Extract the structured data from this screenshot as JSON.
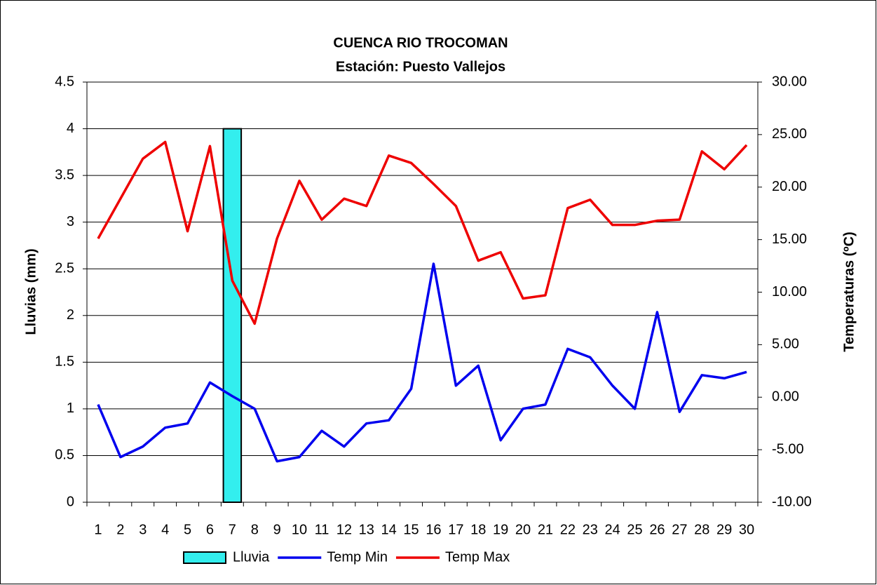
{
  "chart_data": {
    "type": "bar",
    "title": "CUENCA RIO TROCOMAN",
    "subtitle": "Estación: Puesto Vallejos",
    "y_label": "Lluvias (mm)",
    "y2_label": "Temperaturas (ºC)",
    "categories": [
      "1",
      "2",
      "3",
      "4",
      "5",
      "6",
      "7",
      "8",
      "9",
      "10",
      "11",
      "12",
      "13",
      "14",
      "15",
      "16",
      "17",
      "18",
      "19",
      "20",
      "21",
      "22",
      "23",
      "24",
      "25",
      "26",
      "27",
      "28",
      "29",
      "30"
    ],
    "series": [
      {
        "name": "Lluvia",
        "type": "bar",
        "color": "#33eeee",
        "values": [
          0,
          0,
          0,
          0,
          0,
          0,
          4,
          0,
          0,
          0,
          0,
          0,
          0,
          0,
          0,
          0,
          0,
          0,
          0,
          0,
          0,
          0,
          0,
          0,
          0,
          0,
          0,
          0,
          0,
          0
        ]
      },
      {
        "name": "Temp Min",
        "type": "line",
        "axis": "y2",
        "color": "#0000ee",
        "values": [
          -0.7,
          -5.7,
          -4.7,
          -2.9,
          -2.5,
          1.4,
          0.1,
          -1.1,
          -6.1,
          -5.7,
          -3.2,
          -4.7,
          -2.5,
          -2.2,
          0.8,
          12.7,
          1.1,
          3.0,
          -4.1,
          -1.1,
          -0.7,
          4.6,
          3.8,
          1.1,
          -1.1,
          8.1,
          -1.4,
          2.1,
          1.8,
          2.4
        ]
      },
      {
        "name": "Temp Max",
        "type": "line",
        "axis": "y2",
        "color": "#ee0000",
        "values": [
          15.1,
          18.9,
          22.7,
          24.3,
          15.8,
          23.9,
          11.1,
          7.0,
          15.1,
          20.6,
          16.9,
          18.9,
          18.2,
          23.0,
          22.3,
          20.3,
          18.2,
          13.0,
          13.8,
          9.4,
          9.7,
          18.0,
          18.8,
          16.4,
          16.4,
          16.8,
          16.9,
          23.4,
          21.7,
          24.0
        ]
      }
    ],
    "ylim": [
      0,
      4.5
    ],
    "yticks": [
      0,
      0.5,
      1,
      1.5,
      2,
      2.5,
      3,
      3.5,
      4,
      4.5
    ],
    "y2lim": [
      -10,
      30
    ],
    "y2ticks": [
      {
        "value": -10,
        "label": "-10.00"
      },
      {
        "value": -5,
        "label": "-5.00"
      },
      {
        "value": 0,
        "label": "0.00"
      },
      {
        "value": 5,
        "label": "5.00"
      },
      {
        "value": 10,
        "label": "10.00"
      },
      {
        "value": 15,
        "label": "15.00"
      },
      {
        "value": 20,
        "label": "20.00"
      },
      {
        "value": 25,
        "label": "25.00"
      },
      {
        "value": 30,
        "label": "30.00"
      }
    ],
    "grid": true,
    "legend": "bottom"
  }
}
